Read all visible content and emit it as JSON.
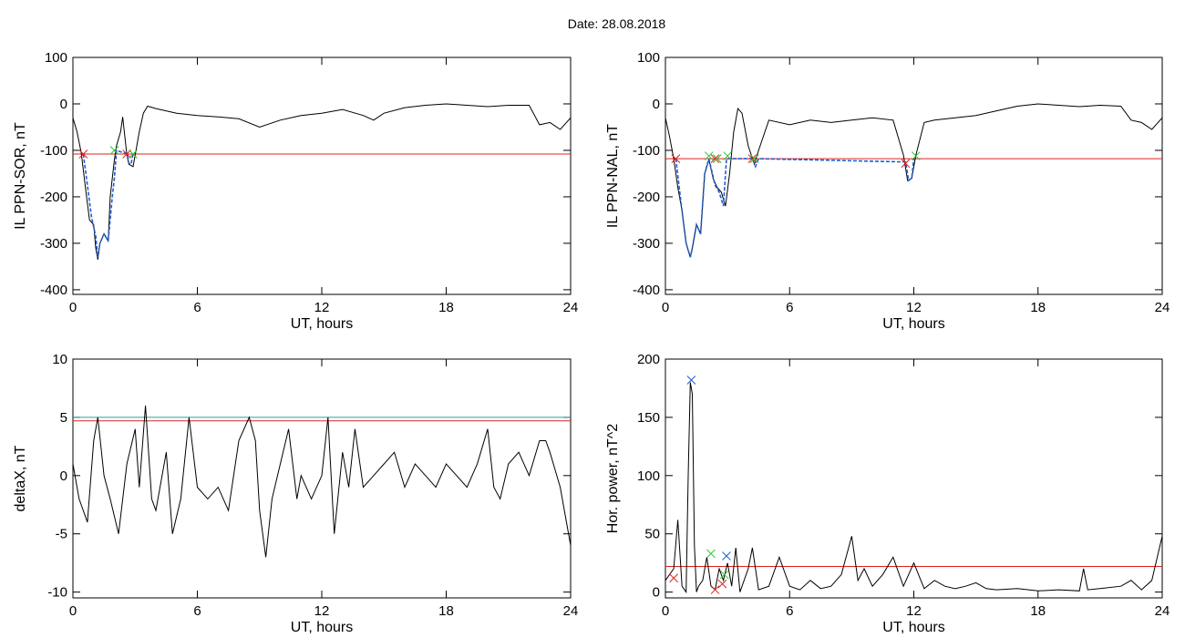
{
  "figure": {
    "date_label": "Date:",
    "date_value": "28.08.2018"
  },
  "chart_data": [
    {
      "id": "p1",
      "type": "line",
      "xlabel": "UT, hours",
      "ylabel": "IL PPN-SOR, nT",
      "xlim": [
        0,
        24
      ],
      "ylim": [
        -410,
        100
      ],
      "xticks": [
        0,
        6,
        12,
        18,
        24
      ],
      "yticks": [
        100,
        0,
        -100,
        -200,
        -300,
        -400
      ],
      "grid": false,
      "threshold": -108,
      "series": [
        {
          "color": "#000000",
          "x": [
            0,
            0.2,
            0.4,
            0.6,
            0.8,
            1.0,
            1.1,
            1.2,
            1.3,
            1.5,
            1.7,
            1.8,
            2.0,
            2.1,
            2.3,
            2.4,
            2.6,
            2.7,
            2.9,
            3.0,
            3.2,
            3.4,
            3.6,
            4,
            5,
            6,
            7,
            8,
            9,
            10,
            11,
            12,
            13,
            14,
            14.5,
            15,
            16,
            17,
            18,
            19,
            20,
            21,
            22,
            22.5,
            23,
            23.5,
            24
          ],
          "y": [
            -30,
            -60,
            -105,
            -180,
            -250,
            -260,
            -310,
            -335,
            -300,
            -280,
            -295,
            -200,
            -120,
            -90,
            -60,
            -28,
            -110,
            -130,
            -135,
            -110,
            -60,
            -20,
            -5,
            -10,
            -20,
            -25,
            -28,
            -32,
            -50,
            -35,
            -25,
            -20,
            -12,
            -25,
            -35,
            -20,
            -8,
            -3,
            0,
            -3,
            -6,
            -3,
            -3,
            -45,
            -40,
            -55,
            -30
          ]
        },
        {
          "color": "#1f5fd0",
          "x": [
            0.5,
            0.7,
            0.9,
            1.1,
            1.2,
            1.3,
            1.5,
            1.7,
            1.9,
            2.0,
            2.1,
            2.6,
            2.7,
            2.8,
            2.9
          ],
          "y": [
            -108,
            -175,
            -245,
            -285,
            -330,
            -300,
            -280,
            -295,
            -200,
            -160,
            -100,
            -108,
            -128,
            -130,
            -108
          ]
        }
      ],
      "markers": [
        {
          "x": 0.5,
          "y": -108,
          "color": "#e02020"
        },
        {
          "x": 2.0,
          "y": -100,
          "color": "#30c030"
        },
        {
          "x": 2.6,
          "y": -108,
          "color": "#e02020"
        },
        {
          "x": 2.9,
          "y": -108,
          "color": "#30c030"
        }
      ]
    },
    {
      "id": "p2",
      "type": "line",
      "xlabel": "UT, hours",
      "ylabel": "IL PPN-NAL, nT",
      "xlim": [
        0,
        24
      ],
      "ylim": [
        -410,
        100
      ],
      "xticks": [
        0,
        6,
        12,
        18,
        24
      ],
      "yticks": [
        100,
        0,
        -100,
        -200,
        -300,
        -400
      ],
      "grid": false,
      "threshold": -118,
      "series": [
        {
          "color": "#000000",
          "x": [
            0,
            0.2,
            0.4,
            0.6,
            0.8,
            1.0,
            1.2,
            1.3,
            1.5,
            1.7,
            1.9,
            2.1,
            2.3,
            2.5,
            2.7,
            2.9,
            3.1,
            3.3,
            3.5,
            3.7,
            4.0,
            4.3,
            4.5,
            5,
            6,
            7,
            8,
            9,
            10,
            11,
            11.5,
            11.7,
            11.9,
            12.1,
            12.5,
            13,
            14,
            15,
            16,
            17,
            18,
            19,
            20,
            21,
            22,
            22.5,
            23,
            23.5,
            24
          ],
          "y": [
            -30,
            -70,
            -118,
            -180,
            -230,
            -300,
            -330,
            -310,
            -260,
            -280,
            -150,
            -120,
            -160,
            -180,
            -190,
            -220,
            -150,
            -60,
            -10,
            -20,
            -90,
            -130,
            -100,
            -35,
            -45,
            -35,
            -40,
            -35,
            -30,
            -35,
            -110,
            -165,
            -160,
            -110,
            -40,
            -35,
            -30,
            -25,
            -15,
            -5,
            0,
            -3,
            -6,
            -3,
            -5,
            -35,
            -40,
            -55,
            -30
          ]
        },
        {
          "color": "#1f5fd0",
          "x": [
            0.5,
            0.8,
            1.0,
            1.2,
            1.3,
            1.5,
            1.7,
            1.9,
            2.1,
            2.4,
            2.6,
            2.8,
            2.95,
            4.2,
            4.35,
            4.5,
            11.6,
            11.75,
            11.9,
            12.0
          ],
          "y": [
            -118,
            -230,
            -300,
            -330,
            -310,
            -260,
            -280,
            -150,
            -118,
            -175,
            -190,
            -220,
            -118,
            -118,
            -135,
            -118,
            -125,
            -165,
            -160,
            -118
          ]
        }
      ],
      "markers": [
        {
          "x": 0.5,
          "y": -118,
          "color": "#e02020"
        },
        {
          "x": 2.1,
          "y": -112,
          "color": "#30c030"
        },
        {
          "x": 2.4,
          "y": -118,
          "color": "#e02020"
        },
        {
          "x": 2.5,
          "y": -118,
          "color": "#30c030"
        },
        {
          "x": 3.0,
          "y": -112,
          "color": "#30c030"
        },
        {
          "x": 4.2,
          "y": -118,
          "color": "#e02020"
        },
        {
          "x": 4.3,
          "y": -118,
          "color": "#30c030"
        },
        {
          "x": 11.6,
          "y": -128,
          "color": "#e02020"
        },
        {
          "x": 12.1,
          "y": -112,
          "color": "#30c030"
        }
      ]
    },
    {
      "id": "p3",
      "type": "line",
      "xlabel": "UT, hours",
      "ylabel": "deltaX, nT",
      "xlim": [
        0,
        24
      ],
      "ylim": [
        -10.5,
        10
      ],
      "xticks": [
        0,
        6,
        12,
        18,
        24
      ],
      "yticks": [
        10,
        5,
        0,
        -5,
        -10
      ],
      "grid": false,
      "threshold": 4.7,
      "threshold2": 5.0,
      "series": [
        {
          "color": "#000000",
          "x": [
            0,
            0.3,
            0.7,
            1.0,
            1.2,
            1.5,
            1.8,
            2.2,
            2.6,
            3.0,
            3.2,
            3.5,
            3.8,
            4.0,
            4.5,
            4.8,
            5.2,
            5.6,
            6.0,
            6.5,
            7.0,
            7.5,
            8.0,
            8.5,
            8.8,
            9.0,
            9.3,
            9.6,
            10.0,
            10.4,
            10.8,
            11.0,
            11.5,
            12.0,
            12.3,
            12.6,
            13.0,
            13.3,
            13.6,
            14.0,
            14.5,
            15.0,
            15.5,
            16.0,
            16.5,
            17.0,
            17.5,
            18.0,
            18.5,
            19.0,
            19.5,
            20.0,
            20.3,
            20.6,
            21.0,
            21.5,
            22.0,
            22.5,
            22.8,
            23.0,
            23.5,
            24.0
          ],
          "y": [
            1,
            -2,
            -4,
            3,
            5,
            0,
            -2,
            -5,
            1,
            4,
            -1,
            6,
            -2,
            -3,
            2,
            -5,
            -2,
            5,
            -1,
            -2,
            -1,
            -3,
            3,
            5,
            3,
            -3,
            -7,
            -2,
            1,
            4,
            -2,
            0,
            -2,
            0,
            5,
            -5,
            2,
            -1,
            4,
            -1,
            0,
            1,
            2,
            -1,
            1,
            0,
            -1,
            1,
            0,
            -1,
            1,
            4,
            -1,
            -2,
            1,
            2,
            0,
            3,
            3,
            2,
            -1,
            -6
          ]
        }
      ],
      "markers": []
    },
    {
      "id": "p4",
      "type": "line",
      "xlabel": "UT, hours",
      "ylabel": "Hor. power, nT^2",
      "xlim": [
        0,
        24
      ],
      "ylim": [
        -5,
        200
      ],
      "xticks": [
        0,
        6,
        12,
        18,
        24
      ],
      "yticks": [
        200,
        150,
        100,
        50,
        0
      ],
      "grid": false,
      "threshold": 22,
      "series": [
        {
          "color": "#000000",
          "x": [
            0,
            0.2,
            0.4,
            0.6,
            0.8,
            1.0,
            1.1,
            1.2,
            1.3,
            1.4,
            1.5,
            1.6,
            1.8,
            2.0,
            2.2,
            2.4,
            2.6,
            2.8,
            3.0,
            3.2,
            3.4,
            3.6,
            4.0,
            4.2,
            4.5,
            5.0,
            5.5,
            6.0,
            6.5,
            7.0,
            7.5,
            8.0,
            8.5,
            9.0,
            9.3,
            9.6,
            10.0,
            10.5,
            11.0,
            11.5,
            12.0,
            12.5,
            13.0,
            13.5,
            14.0,
            14.5,
            15.0,
            15.5,
            16.0,
            17.0,
            18.0,
            19.0,
            20.0,
            20.2,
            20.4,
            21.0,
            22.0,
            22.5,
            23.0,
            23.5,
            24.0
          ],
          "y": [
            10,
            15,
            20,
            62,
            5,
            0,
            100,
            180,
            170,
            40,
            0,
            5,
            10,
            30,
            5,
            2,
            20,
            10,
            25,
            5,
            38,
            0,
            20,
            38,
            2,
            5,
            30,
            5,
            2,
            10,
            3,
            5,
            15,
            48,
            10,
            20,
            5,
            15,
            30,
            5,
            25,
            3,
            10,
            5,
            3,
            5,
            8,
            3,
            2,
            3,
            1,
            2,
            1,
            20,
            2,
            3,
            5,
            10,
            2,
            10,
            48
          ]
        }
      ],
      "markers": [
        {
          "x": 0.4,
          "y": 12,
          "color": "#e02020"
        },
        {
          "x": 1.25,
          "y": 182,
          "color": "#1f5fd0"
        },
        {
          "x": 2.2,
          "y": 33,
          "color": "#30c030"
        },
        {
          "x": 2.4,
          "y": 2,
          "color": "#e02020"
        },
        {
          "x": 2.75,
          "y": 7,
          "color": "#e02020"
        },
        {
          "x": 2.85,
          "y": 15,
          "color": "#30c030"
        },
        {
          "x": 2.95,
          "y": 31,
          "color": "#1f5fd0"
        }
      ]
    }
  ],
  "colors": {
    "threshold": "#e02020",
    "threshold2": "#2aa0a0",
    "axis": "#000000"
  }
}
